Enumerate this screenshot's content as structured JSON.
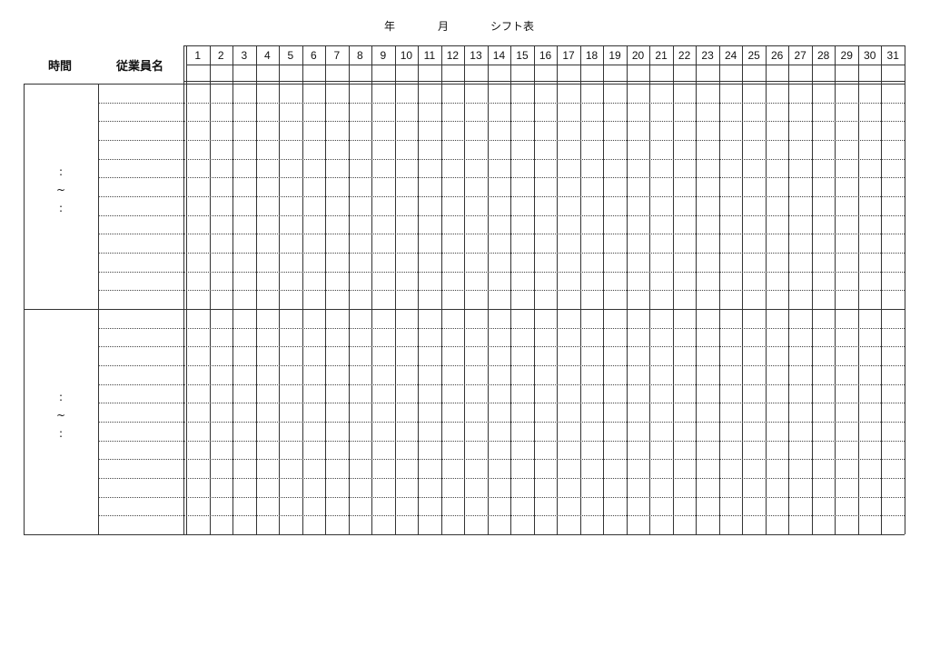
{
  "title": {
    "year": "年",
    "month": "月",
    "main": "シフト表"
  },
  "headers": {
    "time": "時間",
    "employee": "従業員名"
  },
  "days": [
    "1",
    "2",
    "3",
    "4",
    "5",
    "6",
    "7",
    "8",
    "9",
    "10",
    "11",
    "12",
    "13",
    "14",
    "15",
    "16",
    "17",
    "18",
    "19",
    "20",
    "21",
    "22",
    "23",
    "24",
    "25",
    "26",
    "27",
    "28",
    "29",
    "30",
    "31"
  ],
  "blocks": [
    {
      "time_start": ":",
      "separator": "~",
      "time_end": ":"
    },
    {
      "time_start": ":",
      "separator": "~",
      "time_end": ":"
    }
  ]
}
